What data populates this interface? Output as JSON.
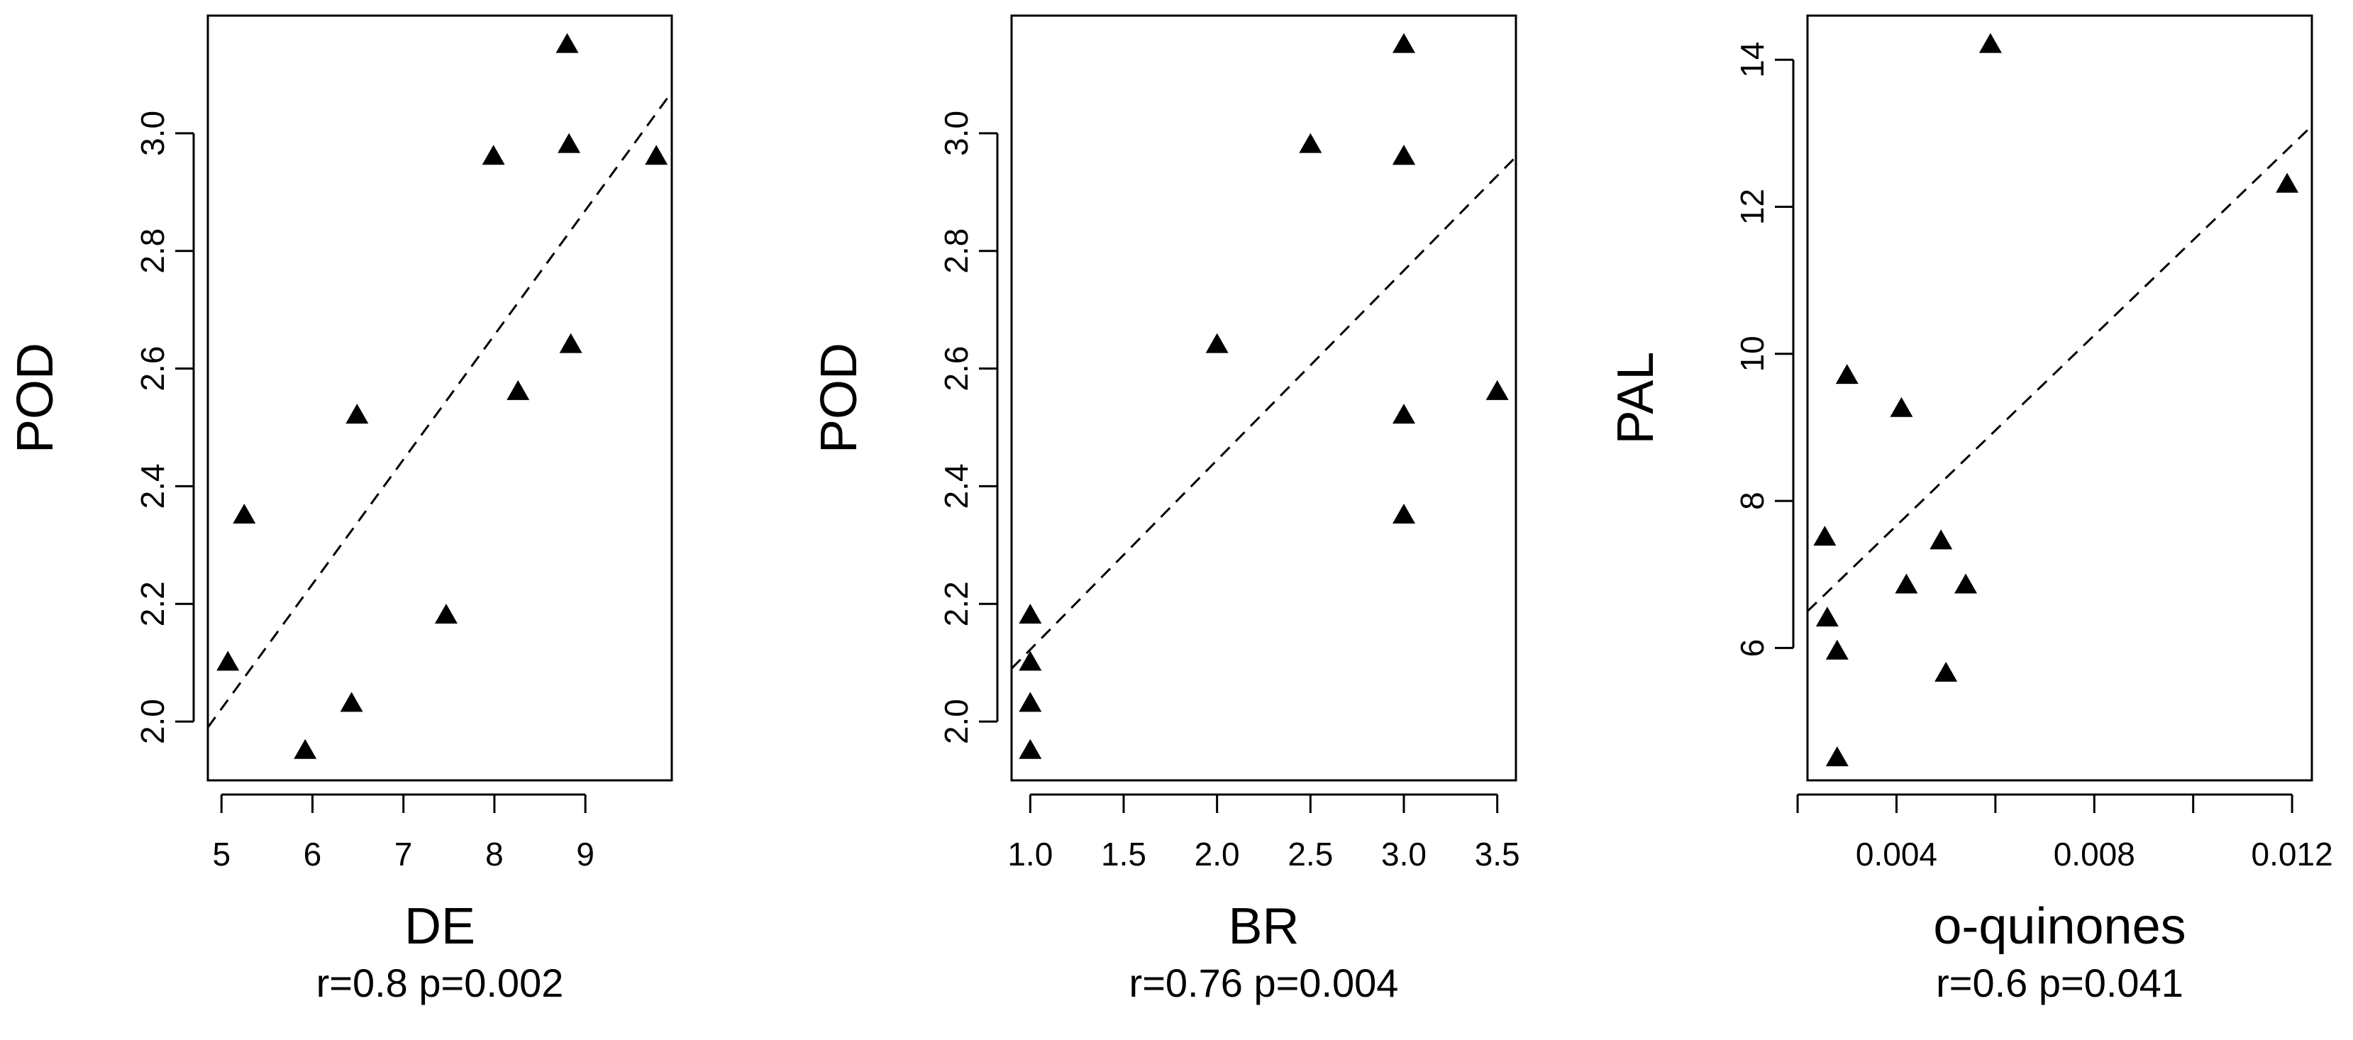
{
  "chart_data": [
    {
      "type": "scatter",
      "xlabel": "DE",
      "ylabel": "POD",
      "annotation": "r=0.8 p=0.002",
      "xlim": [
        4.85,
        9.95
      ],
      "ylim": [
        1.9,
        3.2
      ],
      "x_ticks": [
        5,
        6,
        7,
        8,
        9
      ],
      "x_tick_labels": [
        "5",
        "6",
        "7",
        "8",
        "9"
      ],
      "y_ticks": [
        2.0,
        2.2,
        2.4,
        2.6,
        2.8,
        3.0
      ],
      "y_tick_labels": [
        "2.0",
        "2.2",
        "2.4",
        "2.6",
        "2.8",
        "3.0"
      ],
      "points": [
        {
          "x": 5.07,
          "y": 2.1
        },
        {
          "x": 5.25,
          "y": 2.35
        },
        {
          "x": 5.92,
          "y": 1.95
        },
        {
          "x": 6.43,
          "y": 2.03
        },
        {
          "x": 6.49,
          "y": 2.52
        },
        {
          "x": 7.47,
          "y": 2.18
        },
        {
          "x": 7.99,
          "y": 2.96
        },
        {
          "x": 8.26,
          "y": 2.56
        },
        {
          "x": 8.8,
          "y": 3.15
        },
        {
          "x": 8.82,
          "y": 2.98
        },
        {
          "x": 8.84,
          "y": 2.64
        },
        {
          "x": 9.78,
          "y": 2.96
        }
      ],
      "fit_line": {
        "x": [
          4.85,
          9.95
        ],
        "y": [
          1.99,
          3.07
        ]
      },
      "grid": false,
      "marker": "filled-triangle",
      "fit_line_style": "dashed",
      "color": "#000000"
    },
    {
      "type": "scatter",
      "xlabel": "BR",
      "ylabel": "POD",
      "annotation": "r=0.76 p=0.004",
      "xlim": [
        0.9,
        3.6
      ],
      "ylim": [
        1.9,
        3.2
      ],
      "x_ticks": [
        1.0,
        1.5,
        2.0,
        2.5,
        3.0,
        3.5
      ],
      "x_tick_labels": [
        "1.0",
        "1.5",
        "2.0",
        "2.5",
        "3.0",
        "3.5"
      ],
      "y_ticks": [
        2.0,
        2.2,
        2.4,
        2.6,
        2.8,
        3.0
      ],
      "y_tick_labels": [
        "2.0",
        "2.2",
        "2.4",
        "2.6",
        "2.8",
        "3.0"
      ],
      "points": [
        {
          "x": 1.0,
          "y": 1.95
        },
        {
          "x": 1.0,
          "y": 2.03
        },
        {
          "x": 1.0,
          "y": 2.1
        },
        {
          "x": 1.0,
          "y": 2.18
        },
        {
          "x": 2.0,
          "y": 2.64
        },
        {
          "x": 2.5,
          "y": 2.98
        },
        {
          "x": 3.0,
          "y": 2.35
        },
        {
          "x": 3.0,
          "y": 2.52
        },
        {
          "x": 3.0,
          "y": 2.96
        },
        {
          "x": 3.0,
          "y": 2.96
        },
        {
          "x": 3.0,
          "y": 3.15
        },
        {
          "x": 3.5,
          "y": 2.56
        }
      ],
      "fit_line": {
        "x": [
          0.9,
          3.6
        ],
        "y": [
          2.09,
          2.96
        ]
      },
      "grid": false,
      "marker": "filled-triangle",
      "fit_line_style": "dashed",
      "color": "#000000"
    },
    {
      "type": "scatter",
      "xlabel": "o-quinones",
      "ylabel": "PAL",
      "annotation": "r=0.6 p=0.041",
      "xlim": [
        0.0022,
        0.0124
      ],
      "ylim": [
        4.2,
        14.6
      ],
      "x_ticks": [
        0.002,
        0.004,
        0.006,
        0.008,
        0.01,
        0.012
      ],
      "x_tick_labels": [
        "",
        "0.004",
        "",
        "0.008",
        "",
        "0.012"
      ],
      "y_ticks": [
        6,
        8,
        10,
        12,
        14
      ],
      "y_tick_labels": [
        "6",
        "8",
        "10",
        "12",
        "14"
      ],
      "points": [
        {
          "x": 0.00255,
          "y": 7.5
        },
        {
          "x": 0.0026,
          "y": 6.4
        },
        {
          "x": 0.0028,
          "y": 5.95
        },
        {
          "x": 0.0028,
          "y": 4.5
        },
        {
          "x": 0.003,
          "y": 9.7
        },
        {
          "x": 0.0041,
          "y": 9.25
        },
        {
          "x": 0.0042,
          "y": 6.85
        },
        {
          "x": 0.0049,
          "y": 7.45
        },
        {
          "x": 0.005,
          "y": 5.65
        },
        {
          "x": 0.0054,
          "y": 6.85
        },
        {
          "x": 0.0059,
          "y": 14.2
        },
        {
          "x": 0.0119,
          "y": 12.3
        }
      ],
      "fit_line": {
        "x": [
          0.0022,
          0.0124
        ],
        "y": [
          6.5,
          13.1
        ]
      },
      "grid": false,
      "marker": "filled-triangle",
      "fit_line_style": "dashed",
      "color": "#000000"
    }
  ]
}
